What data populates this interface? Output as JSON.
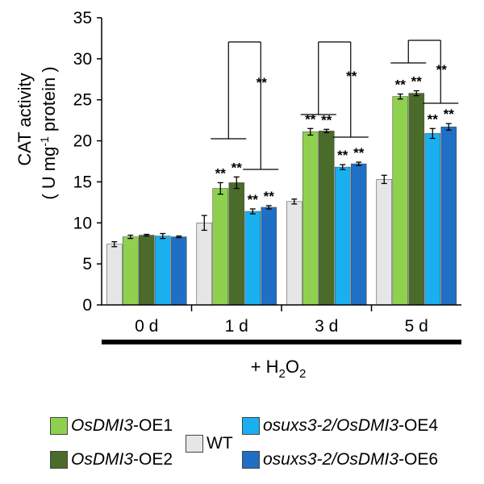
{
  "chart_data": {
    "type": "bar",
    "ylabel_line1": "CAT activity",
    "ylabel_line2_pre": "( U mg",
    "ylabel_sup": "-1",
    "ylabel_line2_post": "  protein )",
    "ylim": [
      0,
      35
    ],
    "yticks": [
      "0",
      "5",
      "10",
      "15",
      "20",
      "25",
      "30",
      "35"
    ],
    "categories": [
      "0 d",
      "1 d",
      "3 d",
      "5 d"
    ],
    "treatment": {
      "prefix": "+ H",
      "sub1": "2",
      "mid": "O",
      "sub2": "2"
    },
    "series": [
      {
        "name": "WT",
        "color": "#e6e6e6",
        "values": [
          7.4,
          10.0,
          12.6,
          15.3
        ],
        "errors": [
          0.3,
          0.9,
          0.3,
          0.5
        ]
      },
      {
        "name": "OsDMI3-OE1",
        "color": "#8fd14f",
        "values": [
          8.3,
          14.2,
          21.1,
          25.4
        ],
        "errors": [
          0.2,
          0.7,
          0.4,
          0.3
        ]
      },
      {
        "name": "OsDMI3-OE2",
        "color": "#4a6b2a",
        "values": [
          8.5,
          14.9,
          21.2,
          25.8
        ],
        "errors": [
          0.1,
          0.7,
          0.2,
          0.3
        ]
      },
      {
        "name": "osuxs3-2/OsDMI3-OE4",
        "color": "#1ab0ef",
        "values": [
          8.4,
          11.4,
          16.8,
          20.9
        ],
        "errors": [
          0.3,
          0.3,
          0.3,
          0.6
        ]
      },
      {
        "name": "osuxs3-2/OsDMI3-OE6",
        "color": "#1f6fc5",
        "values": [
          8.3,
          11.9,
          17.2,
          21.7
        ],
        "errors": [
          0.1,
          0.2,
          0.2,
          0.4
        ]
      }
    ],
    "significance_mark": "**"
  },
  "legend": {
    "oe1_italic": "OsDMI3",
    "oe1_rest": "-OE1",
    "oe2_italic": "OsDMI3",
    "oe2_rest": "-OE2",
    "wt": "WT",
    "oe4_italic": "osuxs3-2/OsDMI3",
    "oe4_rest": "-OE4",
    "oe6_italic": "osuxs3-2/OsDMI3",
    "oe6_rest": "-OE6"
  }
}
